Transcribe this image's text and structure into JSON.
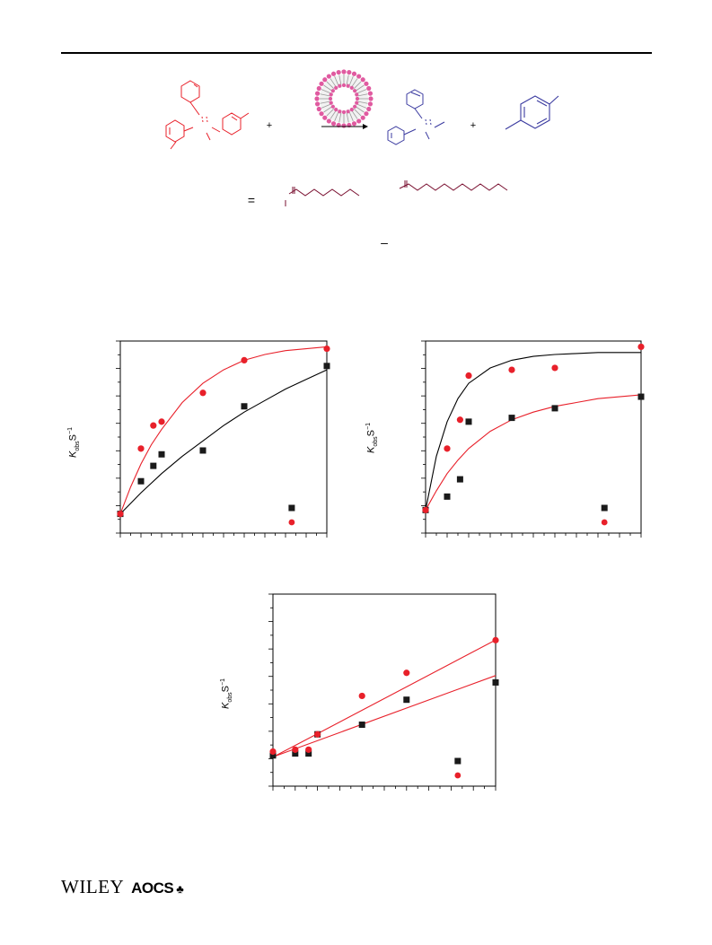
{
  "footer": {
    "publisher_logo": "WILEY",
    "society_logo": "AOCS"
  },
  "scheme": {
    "plus_sign": "+",
    "equals_sign": "=",
    "minus_sign": "–",
    "micelle_color": "#e05aa0",
    "reactant_color": "#e8202a",
    "product_color": "#3b3ba0",
    "chain_color": "#7a1030"
  },
  "ylabel": {
    "k": "K",
    "sub": "obs",
    "unit": "S",
    "sup": "−1"
  },
  "colors": {
    "series_black": "#1a1a1a",
    "series_red": "#e8202a",
    "fit_red": "#e8202a",
    "fit_black": "#000000"
  },
  "chart_data": [
    {
      "type": "scatter",
      "grid": false,
      "ylim": [
        0,
        1
      ],
      "xlim": [
        0,
        1
      ],
      "series": [
        {
          "values_x": [
            0.0,
            0.1,
            0.16,
            0.2,
            0.4,
            0.6,
            1.0
          ],
          "values_y": [
            0.1,
            0.27,
            0.35,
            0.41,
            0.43,
            0.66,
            0.87
          ],
          "marker": "square",
          "color": "#1a1a1a"
        },
        {
          "values_x": [
            0.0,
            0.1,
            0.16,
            0.2,
            0.4,
            0.6,
            1.0
          ],
          "values_y": [
            0.1,
            0.44,
            0.56,
            0.58,
            0.73,
            0.9,
            0.96
          ],
          "marker": "circle",
          "color": "#e8202a"
        }
      ],
      "fits": [
        {
          "color": "#e8202a",
          "x": [
            0,
            0.05,
            0.1,
            0.15,
            0.2,
            0.3,
            0.4,
            0.5,
            0.6,
            0.7,
            0.8,
            0.9,
            1.0
          ],
          "y": [
            0.1,
            0.24,
            0.36,
            0.46,
            0.54,
            0.68,
            0.78,
            0.85,
            0.9,
            0.93,
            0.95,
            0.96,
            0.97
          ]
        },
        {
          "color": "#000000",
          "x": [
            0,
            0.1,
            0.2,
            0.3,
            0.4,
            0.5,
            0.6,
            0.7,
            0.8,
            0.9,
            1.0
          ],
          "y": [
            0.1,
            0.21,
            0.31,
            0.4,
            0.48,
            0.56,
            0.63,
            0.69,
            0.75,
            0.8,
            0.85
          ]
        }
      ],
      "legend": {
        "placement": "bottom-right"
      }
    },
    {
      "type": "scatter",
      "grid": false,
      "ylim": [
        0,
        1
      ],
      "xlim": [
        0,
        1
      ],
      "series": [
        {
          "values_x": [
            0.0,
            0.1,
            0.16,
            0.2,
            0.4,
            0.6,
            1.0
          ],
          "values_y": [
            0.12,
            0.19,
            0.28,
            0.58,
            0.6,
            0.65,
            0.71
          ],
          "marker": "square",
          "color": "#1a1a1a"
        },
        {
          "values_x": [
            0.0,
            0.1,
            0.16,
            0.2,
            0.4,
            0.6,
            1.0
          ],
          "values_y": [
            0.12,
            0.44,
            0.59,
            0.82,
            0.85,
            0.86,
            0.97
          ],
          "marker": "circle",
          "color": "#e8202a"
        }
      ],
      "fits": [
        {
          "color": "#000000",
          "x": [
            0,
            0.05,
            0.1,
            0.15,
            0.2,
            0.3,
            0.4,
            0.5,
            0.6,
            0.7,
            0.8,
            0.9,
            1.0
          ],
          "y": [
            0.12,
            0.4,
            0.58,
            0.7,
            0.78,
            0.86,
            0.9,
            0.92,
            0.93,
            0.935,
            0.94,
            0.94,
            0.94
          ]
        },
        {
          "color": "#e8202a",
          "x": [
            0,
            0.05,
            0.1,
            0.15,
            0.2,
            0.3,
            0.4,
            0.5,
            0.6,
            0.7,
            0.8,
            0.9,
            1.0
          ],
          "y": [
            0.12,
            0.22,
            0.31,
            0.38,
            0.44,
            0.53,
            0.59,
            0.63,
            0.66,
            0.68,
            0.7,
            0.71,
            0.72
          ]
        }
      ],
      "legend": {
        "placement": "bottom-right"
      }
    },
    {
      "type": "scatter",
      "grid": false,
      "ylim": [
        0,
        1
      ],
      "xlim": [
        0,
        1
      ],
      "series": [
        {
          "values_x": [
            0.0,
            0.1,
            0.16,
            0.2,
            0.4,
            0.6,
            1.0
          ],
          "values_y": [
            0.16,
            0.17,
            0.17,
            0.27,
            0.32,
            0.45,
            0.54
          ],
          "marker": "square",
          "color": "#1a1a1a"
        },
        {
          "values_x": [
            0.0,
            0.1,
            0.16,
            0.2,
            0.4,
            0.6,
            1.0
          ],
          "values_y": [
            0.18,
            0.19,
            0.19,
            0.27,
            0.47,
            0.59,
            0.76
          ],
          "marker": "circle",
          "color": "#e8202a"
        }
      ],
      "fits": [
        {
          "color": "#e8202a",
          "x": [
            -0.1,
            1.08
          ],
          "y": [
            0.09,
            0.81
          ]
        },
        {
          "color": "#e8202a",
          "x": [
            -0.1,
            1.08
          ],
          "y": [
            0.11,
            0.61
          ]
        }
      ],
      "legend": {
        "placement": "bottom-right"
      }
    }
  ]
}
